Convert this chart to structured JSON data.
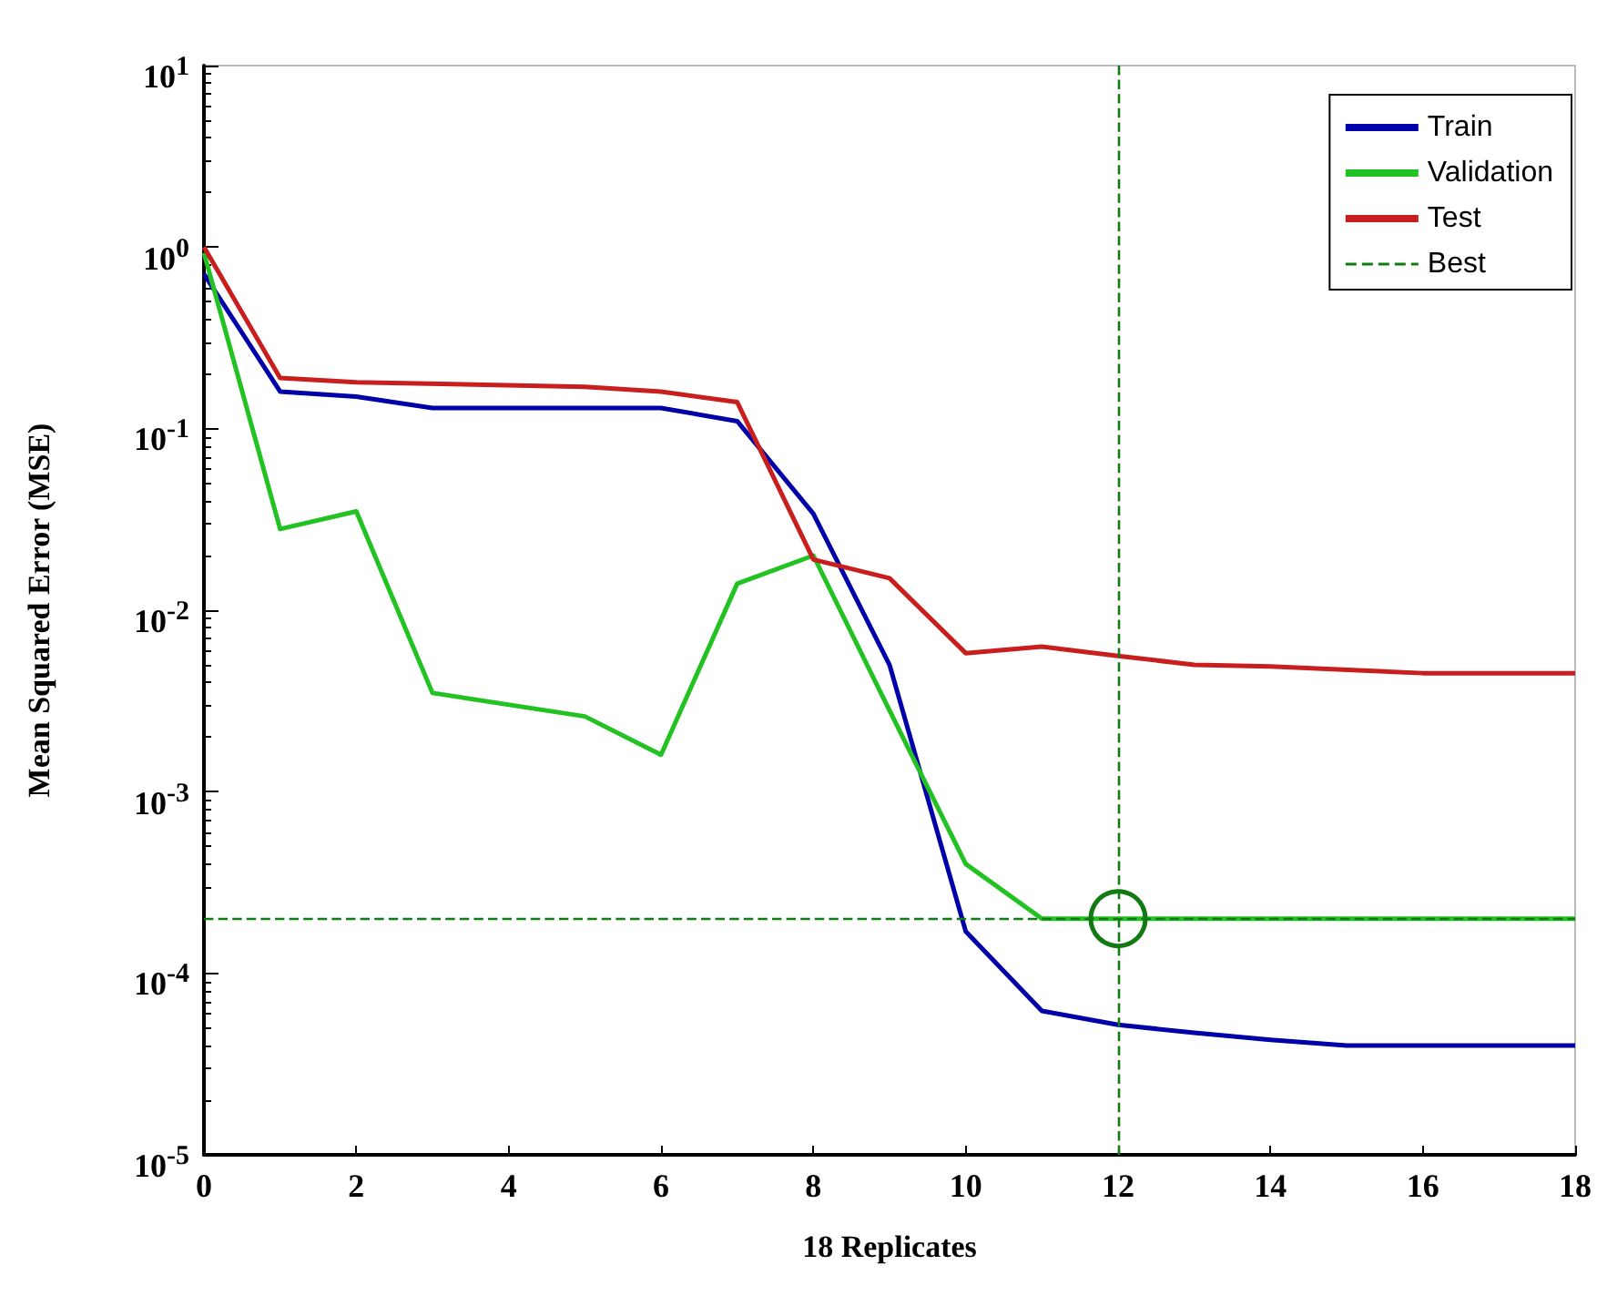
{
  "chart_data": {
    "type": "line",
    "xlabel": "18 Replicates",
    "ylabel": "Mean Squared Error (MSE)",
    "xlim": [
      0,
      18
    ],
    "xticks": [
      0,
      2,
      4,
      6,
      8,
      10,
      12,
      14,
      16,
      18
    ],
    "ylim": [
      1e-05,
      10
    ],
    "log": "y",
    "yticks": [
      {
        "value": 1e-05,
        "label": "10$^{-5}$"
      },
      {
        "value": 0.0001,
        "label": "10$^{-4}$"
      },
      {
        "value": 0.001,
        "label": "10$^{-3}$"
      },
      {
        "value": 0.01,
        "label": "10$^{-2}$"
      },
      {
        "value": 0.1,
        "label": "10$^{-1}$"
      },
      {
        "value": 1,
        "label": "10$^{0}$"
      },
      {
        "value": 10,
        "label": "10$^{1}$"
      }
    ],
    "grid": false,
    "legend": "top right",
    "series": [
      {
        "name": "Train",
        "color": "#0000a8",
        "x": [
          0,
          1,
          2,
          3,
          6,
          7,
          8,
          9,
          10,
          11,
          12,
          13,
          14,
          15,
          18
        ],
        "values": [
          0.71,
          0.16,
          0.15,
          0.13,
          0.13,
          0.11,
          0.034,
          0.005,
          0.00017,
          6.2e-05,
          5.2e-05,
          4.7e-05,
          4.3e-05,
          4e-05,
          4e-05
        ]
      },
      {
        "name": "Validation",
        "color": "#22c222",
        "x": [
          0,
          1,
          2,
          3,
          5,
          6,
          7,
          8,
          9,
          10,
          11,
          12,
          18
        ],
        "values": [
          0.93,
          0.028,
          0.035,
          0.0035,
          0.0026,
          0.0016,
          0.014,
          0.02,
          0.0028,
          0.0004,
          0.0002,
          0.0002,
          0.0002
        ]
      },
      {
        "name": "Test",
        "color": "#c81e1e",
        "x": [
          0,
          1,
          2,
          5,
          6,
          7,
          8,
          9,
          10,
          11,
          12,
          13,
          14,
          16,
          18
        ],
        "values": [
          1.0,
          0.19,
          0.18,
          0.17,
          0.16,
          0.14,
          0.019,
          0.015,
          0.0058,
          0.0063,
          0.0056,
          0.005,
          0.0049,
          0.0045,
          0.0045
        ]
      },
      {
        "name": "Best",
        "type": "scatter",
        "color": "#127a12",
        "marker": "circle",
        "line_style": "dashed",
        "x": [
          12
        ],
        "values": [
          0.0002
        ]
      }
    ],
    "ref_lines": [
      {
        "axis": "x",
        "value": 12,
        "color": "#127a12",
        "line_style": "dashed"
      },
      {
        "axis": "y",
        "value": 0.0002,
        "color": "#127a12",
        "line_style": "dashed"
      }
    ]
  }
}
